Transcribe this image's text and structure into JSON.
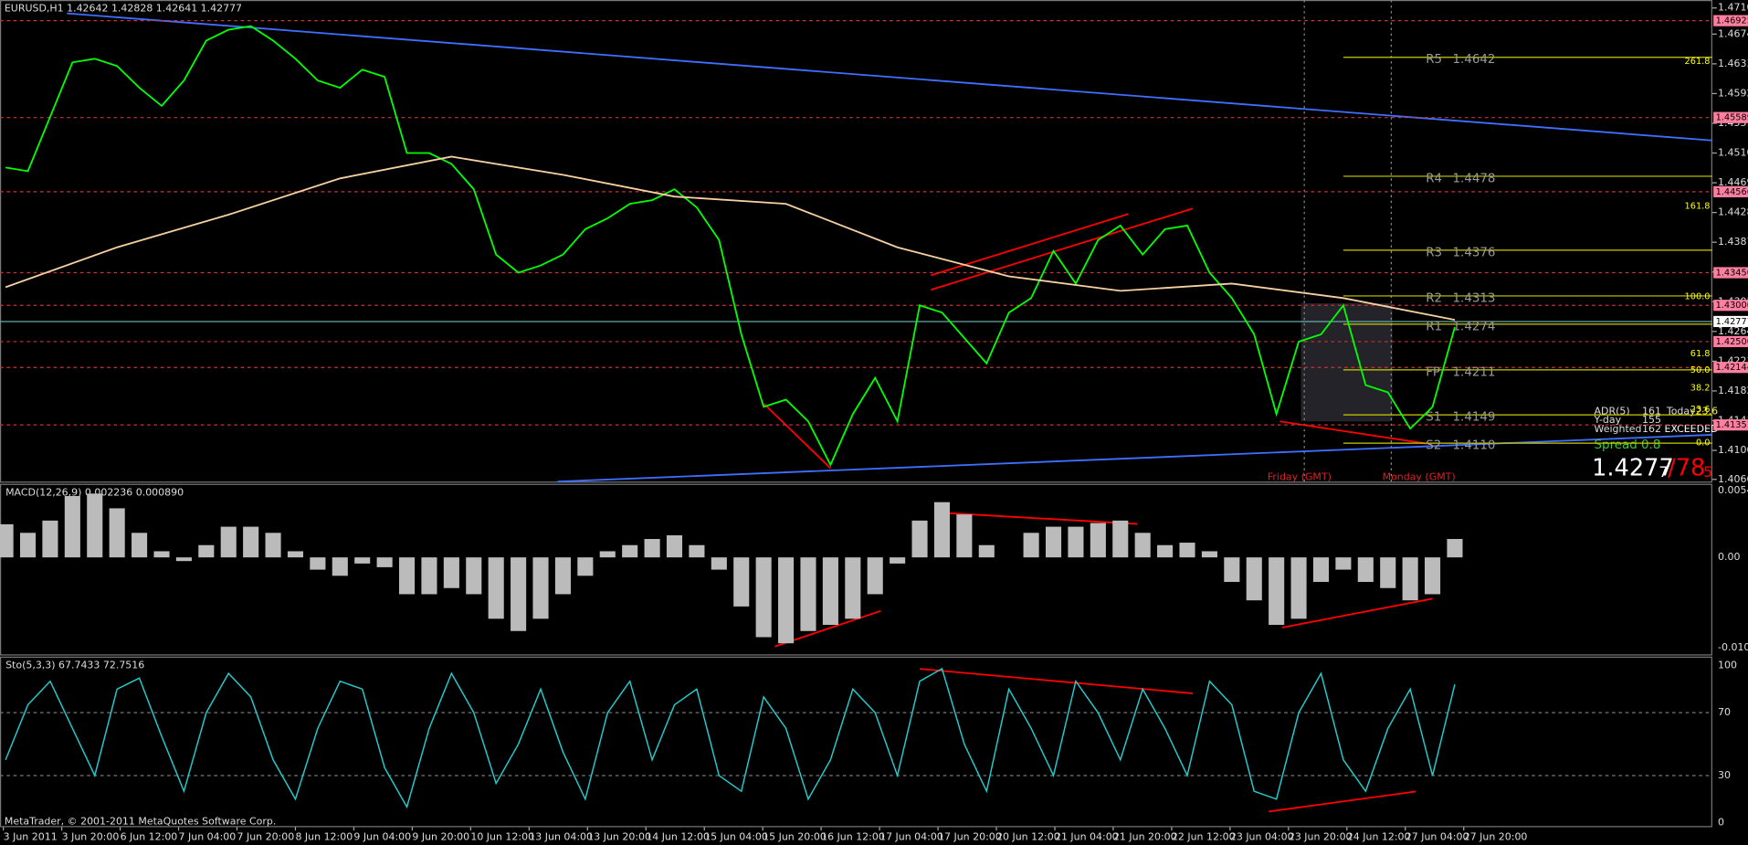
{
  "header": {
    "symbol": "EURUSD,H1  1.42642 1.42828 1.42641 1.42777"
  },
  "price_panel": {
    "ylim": [
      1.4057,
      1.4721
    ],
    "yticks": [
      {
        "value": 1.471,
        "label": "1.47100"
      },
      {
        "value": 1.4674,
        "label": "1.46740"
      },
      {
        "value": 1.4633,
        "label": "1.46330"
      },
      {
        "value": 1.4592,
        "label": "1.45920"
      },
      {
        "value": 1.4551,
        "label": "1.45510"
      },
      {
        "value": 1.451,
        "label": "1.45100"
      },
      {
        "value": 1.4469,
        "label": "1.44690"
      },
      {
        "value": 1.4428,
        "label": "1.44280"
      },
      {
        "value": 1.4387,
        "label": "1.43870"
      },
      {
        "value": 1.4346,
        "label": "1.43460"
      },
      {
        "value": 1.4305,
        "label": "1.43050"
      },
      {
        "value": 1.4264,
        "label": "1.42640"
      },
      {
        "value": 1.4223,
        "label": "1.42230"
      },
      {
        "value": 1.4182,
        "label": "1.41820"
      },
      {
        "value": 1.4141,
        "label": "1.41410"
      },
      {
        "value": 1.41,
        "label": "1.41000"
      },
      {
        "value": 1.406,
        "label": "1.40600"
      }
    ],
    "levels": [
      {
        "value": 1.46925,
        "label": "1.46925"
      },
      {
        "value": 1.45589,
        "label": "1.45589"
      },
      {
        "value": 1.44566,
        "label": "1.44566"
      },
      {
        "value": 1.4345,
        "label": "1.43450"
      },
      {
        "value": 1.43,
        "label": "1.43000"
      },
      {
        "value": 1.425,
        "label": "1.42500"
      },
      {
        "value": 1.42144,
        "label": "1.42144"
      },
      {
        "value": 1.41351,
        "label": "1.41351"
      }
    ],
    "current": {
      "value": 1.42777,
      "label": "1.42777"
    },
    "pivots": [
      {
        "name": "R5",
        "value": 1.4642,
        "label": "1.4642"
      },
      {
        "name": "R4",
        "value": 1.4478,
        "label": "1.4478"
      },
      {
        "name": "R3",
        "value": 1.4376,
        "label": "1.4376"
      },
      {
        "name": "R2",
        "value": 1.4313,
        "label": "1.4313"
      },
      {
        "name": "R1",
        "value": 1.4274,
        "label": "1.4274"
      },
      {
        "name": "FP",
        "value": 1.4211,
        "label": "1.4211"
      },
      {
        "name": "S1",
        "value": 1.4149,
        "label": "1.4149"
      },
      {
        "name": "S2",
        "value": 1.411,
        "label": "1.4110"
      }
    ],
    "fib_labels": [
      "261.8",
      "161.8",
      "100.0",
      "61.8",
      "50.0",
      "38.2",
      "23.6",
      "0.0"
    ],
    "closes": [
      1.449,
      1.4485,
      1.456,
      1.4635,
      1.464,
      1.463,
      1.46,
      1.4575,
      1.461,
      1.4665,
      1.468,
      1.4685,
      1.4665,
      1.464,
      1.461,
      1.46,
      1.4625,
      1.4615,
      1.451,
      1.451,
      1.4495,
      1.446,
      1.437,
      1.4345,
      1.4355,
      1.437,
      1.4405,
      1.442,
      1.444,
      1.4445,
      1.446,
      1.4435,
      1.439,
      1.426,
      1.416,
      1.417,
      1.414,
      1.408,
      1.415,
      1.42,
      1.414,
      1.43,
      1.429,
      1.4255,
      1.422,
      1.429,
      1.431,
      1.4375,
      1.433,
      1.439,
      1.441,
      1.437,
      1.4405,
      1.441,
      1.4345,
      1.431,
      1.426,
      1.415,
      1.425,
      1.426,
      1.43,
      1.419,
      1.418,
      1.413,
      1.416,
      1.427
    ],
    "ma": [
      1.4325,
      1.438,
      1.4425,
      1.4475,
      1.4505,
      1.448,
      1.445,
      1.444,
      1.438,
      1.434,
      1.432,
      1.433,
      1.431,
      1.428
    ],
    "session_labels": [
      "Friday   (GMT)",
      "Monday   (GMT)"
    ]
  },
  "info": {
    "adr": "ADR(5)",
    "adr_value": "161",
    "today": "Today",
    "today_value": "23.6",
    "yday": "Y-day",
    "yday_value": "155",
    "weighted": "Weighted",
    "weighted_value": "162",
    "exceeded": "EXCEEDED",
    "spread": "Spread 0.8"
  },
  "big_price": {
    "main": "1.4277",
    "main_small": "7",
    "sep": "/78",
    "sep_small": "5"
  },
  "macd": {
    "title": "MACD(12,26,9) 0.002236 0.000890",
    "ticks": [
      "0.00545",
      "0.00",
      "-0.0107"
    ],
    "values": [
      0.0027,
      0.002,
      0.003,
      0.005,
      0.0052,
      0.004,
      0.002,
      0.0005,
      -0.0003,
      0.001,
      0.0025,
      0.0025,
      0.002,
      0.0005,
      -0.001,
      -0.0015,
      -0.0005,
      -0.0008,
      -0.003,
      -0.003,
      -0.0025,
      -0.003,
      -0.005,
      -0.006,
      -0.005,
      -0.003,
      -0.0015,
      0.0005,
      0.001,
      0.0015,
      0.0018,
      0.001,
      -0.001,
      -0.004,
      -0.0065,
      -0.007,
      -0.006,
      -0.0055,
      -0.005,
      -0.003,
      -0.0005,
      0.003,
      0.0045,
      0.0035,
      0.001,
      0,
      0.002,
      0.0025,
      0.0025,
      0.0028,
      0.003,
      0.002,
      0.001,
      0.0012,
      0.0005,
      -0.002,
      -0.0035,
      -0.0055,
      -0.005,
      -0.002,
      -0.001,
      -0.002,
      -0.0025,
      -0.0035,
      -0.003,
      0.0015
    ]
  },
  "stoch": {
    "title": "Sto(5,3,3) 67.7433 72.7516",
    "ylim": [
      0,
      100
    ],
    "ticks": [
      100,
      70,
      30,
      0
    ],
    "values": [
      40,
      75,
      90,
      60,
      30,
      85,
      92,
      55,
      20,
      70,
      95,
      80,
      40,
      15,
      60,
      90,
      85,
      35,
      10,
      60,
      95,
      70,
      25,
      50,
      85,
      45,
      15,
      70,
      90,
      40,
      75,
      85,
      30,
      20,
      80,
      60,
      15,
      40,
      85,
      70,
      30,
      90,
      98,
      50,
      20,
      85,
      60,
      30,
      90,
      70,
      40,
      85,
      60,
      30,
      90,
      75,
      20,
      15,
      70,
      95,
      40,
      20,
      60,
      85,
      30,
      88
    ]
  },
  "time_axis": [
    "3 Jun 2011",
    "3 Jun 20:00",
    "6 Jun 12:00",
    "7 Jun 04:00",
    "7 Jun 20:00",
    "8 Jun 12:00",
    "9 Jun 04:00",
    "9 Jun 20:00",
    "10 Jun 12:00",
    "13 Jun 04:00",
    "13 Jun 20:00",
    "14 Jun 12:00",
    "15 Jun 04:00",
    "15 Jun 20:00",
    "16 Jun 12:00",
    "17 Jun 04:00",
    "17 Jun 20:00",
    "20 Jun 12:00",
    "21 Jun 04:00",
    "21 Jun 20:00",
    "22 Jun 12:00",
    "23 Jun 04:00",
    "23 Jun 20:00",
    "24 Jun 12:00",
    "27 Jun 04:00",
    "27 Jun 20:00"
  ],
  "footer": "MetaTrader, © 2001-2011 MetaQuotes Software Corp."
}
